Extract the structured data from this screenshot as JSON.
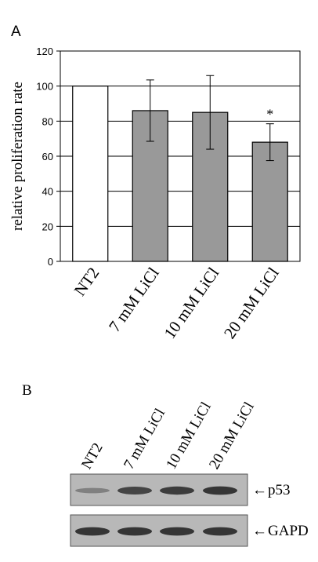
{
  "panels": {
    "a_label": "A",
    "b_label": "B"
  },
  "chart_data": {
    "type": "bar",
    "categories": [
      "NT2",
      "7 mM LiCl",
      "10 mM LiCl",
      "20 mM LiCl"
    ],
    "values": [
      100,
      86,
      85,
      68
    ],
    "errors": [
      0,
      17.5,
      21,
      10.5
    ],
    "bar_colors": [
      "#ffffff",
      "#999999",
      "#999999",
      "#999999"
    ],
    "significance": [
      "",
      "",
      "",
      "*"
    ],
    "title": "",
    "xlabel": "",
    "ylabel": "relative proliferation rate",
    "ylim": [
      0,
      120
    ],
    "yticks": [
      0,
      20,
      40,
      60,
      80,
      100,
      120
    ],
    "grid": true
  },
  "blot": {
    "lane_labels": [
      "NT2",
      "7 mM LiCl",
      "10 mM LiCl",
      "20 mM LiCl"
    ],
    "rows": [
      {
        "label": "p53",
        "intensity": [
          0.35,
          0.75,
          0.8,
          0.85
        ]
      },
      {
        "label": "GAPD",
        "intensity": [
          0.85,
          0.85,
          0.85,
          0.85
        ]
      }
    ],
    "arrow_glyph": "←"
  }
}
